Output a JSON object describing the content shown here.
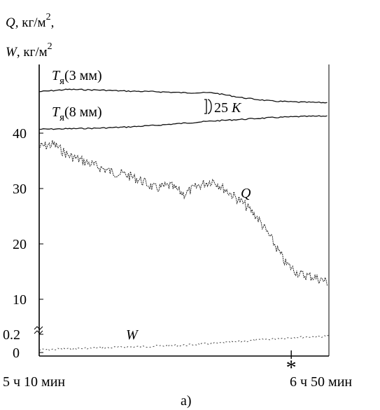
{
  "chart_data": {
    "type": "line",
    "panel_label": "а)",
    "ylabel_line1": {
      "sym": "Q",
      "text": ", кг/м",
      "sup": "2",
      "tail": ","
    },
    "ylabel_line2": {
      "sym": "W",
      "text": ", кг/м",
      "sup": "2"
    },
    "yticks": [
      "40",
      "30",
      "20",
      "10",
      "0.2",
      "0"
    ],
    "x_start": "5 ч 10 мин",
    "x_end": "6 ч 50 мин",
    "marker": "*",
    "scale_annotation": {
      "text": "25 ",
      "sym": "K"
    },
    "series": [
      {
        "name_sym": "T",
        "name_sub": "я",
        "name_rest": "(3 мм)",
        "x": [
          0,
          10,
          20,
          30,
          40,
          50,
          60,
          70,
          80,
          90,
          100
        ],
        "y": [
          47.5,
          47.9,
          47.8,
          47.6,
          47.5,
          47.3,
          47.3,
          46.4,
          45.8,
          45.6,
          45.5
        ]
      },
      {
        "name_sym": "T",
        "name_sub": "я",
        "name_rest": "(8 мм)",
        "x": [
          0,
          10,
          20,
          30,
          40,
          50,
          60,
          70,
          80,
          90,
          100
        ],
        "y": [
          40.7,
          40.8,
          40.9,
          41.1,
          41.4,
          41.8,
          42.2,
          42.5,
          42.8,
          43.0,
          43.1
        ]
      },
      {
        "name": "Q",
        "x": [
          0,
          5,
          10,
          15,
          20,
          25,
          30,
          35,
          40,
          45,
          50,
          55,
          60,
          65,
          70,
          75,
          80,
          85,
          90,
          95,
          100
        ],
        "y": [
          37.5,
          38,
          36,
          35,
          34,
          33,
          32.5,
          31.5,
          30,
          30.5,
          29,
          30.5,
          31.5,
          29.5,
          27.5,
          25,
          21,
          16.5,
          14.5,
          14,
          13
        ]
      },
      {
        "name": "W",
        "x": [
          0,
          10,
          20,
          30,
          40,
          50,
          60,
          70,
          80,
          90,
          100
        ],
        "y": [
          0.03,
          0.04,
          0.05,
          0.06,
          0.07,
          0.08,
          0.1,
          0.12,
          0.15,
          0.17,
          0.18
        ]
      }
    ],
    "marker_x": 87
  }
}
